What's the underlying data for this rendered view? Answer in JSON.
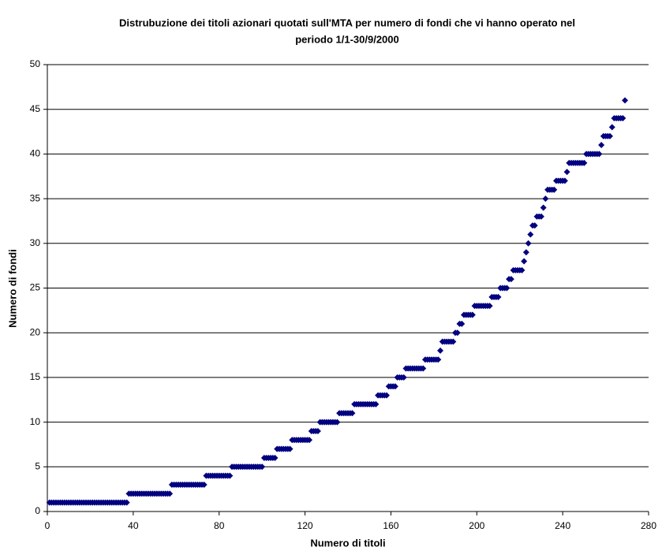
{
  "chart_data": {
    "type": "scatter",
    "title": [
      "Distrubuzione dei titoli azionari quotati sull'MTA per numero di fondi che vi hanno operato nel",
      "periodo 1/1-30/9/2000"
    ],
    "x_label": "Numero di titoli",
    "y_label": "Numero di fondi",
    "color": "#000080",
    "grid": true,
    "xlim": [
      0,
      280
    ],
    "xticks": [
      0,
      40,
      80,
      120,
      160,
      200,
      240,
      280
    ],
    "ylim": [
      0,
      50
    ],
    "yticks": [
      0,
      5,
      10,
      15,
      20,
      25,
      30,
      35,
      40,
      45,
      50
    ],
    "x": [
      1,
      2,
      3,
      4,
      5,
      6,
      7,
      8,
      9,
      10,
      11,
      12,
      13,
      14,
      15,
      16,
      17,
      18,
      19,
      20,
      21,
      22,
      23,
      24,
      25,
      26,
      27,
      28,
      29,
      30,
      31,
      32,
      33,
      34,
      35,
      36,
      37,
      38,
      39,
      40,
      41,
      42,
      43,
      44,
      45,
      46,
      47,
      48,
      49,
      50,
      51,
      52,
      53,
      54,
      55,
      56,
      57,
      58,
      59,
      60,
      61,
      62,
      63,
      64,
      65,
      66,
      67,
      68,
      69,
      70,
      71,
      72,
      73,
      74,
      75,
      76,
      77,
      78,
      79,
      80,
      81,
      82,
      83,
      84,
      85,
      86,
      87,
      88,
      89,
      90,
      91,
      92,
      93,
      94,
      95,
      96,
      97,
      98,
      99,
      100,
      101,
      102,
      103,
      104,
      105,
      106,
      107,
      108,
      109,
      110,
      111,
      112,
      113,
      114,
      115,
      116,
      117,
      118,
      119,
      120,
      121,
      122,
      123,
      124,
      125,
      126,
      127,
      128,
      129,
      130,
      131,
      132,
      133,
      134,
      135,
      136,
      137,
      138,
      139,
      140,
      141,
      142,
      143,
      144,
      145,
      146,
      147,
      148,
      149,
      150,
      151,
      152,
      153,
      154,
      155,
      156,
      157,
      158,
      159,
      160,
      161,
      162,
      163,
      164,
      165,
      166,
      167,
      168,
      169,
      170,
      171,
      172,
      173,
      174,
      175,
      176,
      177,
      178,
      179,
      180,
      181,
      182,
      183,
      184,
      185,
      186,
      187,
      188,
      189,
      190,
      191,
      192,
      193,
      194,
      195,
      196,
      197,
      198,
      199,
      200,
      201,
      202,
      203,
      204,
      205,
      206,
      207,
      208,
      209,
      210,
      211,
      212,
      213,
      214,
      215,
      216,
      217,
      218,
      219,
      220,
      221,
      222,
      223,
      224,
      225,
      226,
      227,
      228,
      229,
      230,
      231,
      232,
      233,
      234,
      235,
      236,
      237,
      238,
      239,
      240,
      241,
      242,
      243,
      244,
      245,
      246,
      247,
      248,
      249,
      250,
      251,
      252,
      253,
      254,
      255,
      256,
      257,
      258,
      259,
      260,
      261,
      262,
      263,
      264,
      265,
      266,
      267,
      268,
      269
    ],
    "values": [
      1,
      1,
      1,
      1,
      1,
      1,
      1,
      1,
      1,
      1,
      1,
      1,
      1,
      1,
      1,
      1,
      1,
      1,
      1,
      1,
      1,
      1,
      1,
      1,
      1,
      1,
      1,
      1,
      1,
      1,
      1,
      1,
      1,
      1,
      1,
      1,
      1,
      2,
      2,
      2,
      2,
      2,
      2,
      2,
      2,
      2,
      2,
      2,
      2,
      2,
      2,
      2,
      2,
      2,
      2,
      2,
      2,
      3,
      3,
      3,
      3,
      3,
      3,
      3,
      3,
      3,
      3,
      3,
      3,
      3,
      3,
      3,
      3,
      4,
      4,
      4,
      4,
      4,
      4,
      4,
      4,
      4,
      4,
      4,
      4,
      5,
      5,
      5,
      5,
      5,
      5,
      5,
      5,
      5,
      5,
      5,
      5,
      5,
      5,
      5,
      6,
      6,
      6,
      6,
      6,
      6,
      7,
      7,
      7,
      7,
      7,
      7,
      7,
      8,
      8,
      8,
      8,
      8,
      8,
      8,
      8,
      8,
      9,
      9,
      9,
      9,
      10,
      10,
      10,
      10,
      10,
      10,
      10,
      10,
      10,
      11,
      11,
      11,
      11,
      11,
      11,
      11,
      12,
      12,
      12,
      12,
      12,
      12,
      12,
      12,
      12,
      12,
      12,
      13,
      13,
      13,
      13,
      13,
      14,
      14,
      14,
      14,
      15,
      15,
      15,
      15,
      16,
      16,
      16,
      16,
      16,
      16,
      16,
      16,
      16,
      17,
      17,
      17,
      17,
      17,
      17,
      17,
      18,
      19,
      19,
      19,
      19,
      19,
      19,
      20,
      20,
      21,
      21,
      22,
      22,
      22,
      22,
      22,
      23,
      23,
      23,
      23,
      23,
      23,
      23,
      23,
      24,
      24,
      24,
      24,
      25,
      25,
      25,
      25,
      26,
      26,
      27,
      27,
      27,
      27,
      27,
      28,
      29,
      30,
      31,
      32,
      32,
      33,
      33,
      33,
      34,
      35,
      36,
      36,
      36,
      36,
      37,
      37,
      37,
      37,
      37,
      38,
      39,
      39,
      39,
      39,
      39,
      39,
      39,
      39,
      40,
      40,
      40,
      40,
      40,
      40,
      40,
      41,
      42,
      42,
      42,
      42,
      43,
      44,
      44,
      44,
      44,
      44,
      46
    ]
  }
}
